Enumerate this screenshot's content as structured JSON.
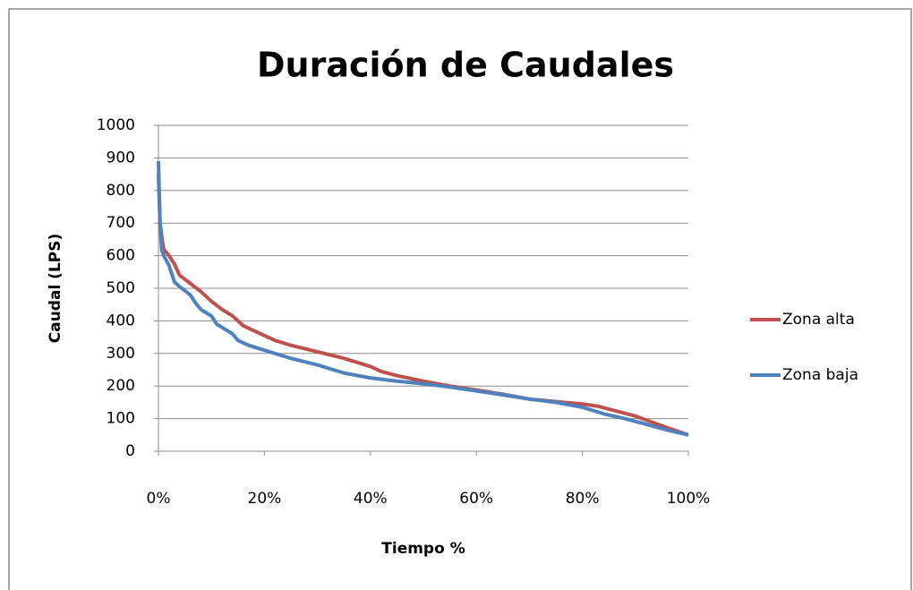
{
  "chart_data": {
    "type": "line",
    "title": "Duración de Caudales",
    "xlabel": "Tiempo %",
    "ylabel": "Caudal (LPS)",
    "xlim": [
      0,
      100
    ],
    "ylim": [
      0,
      1000
    ],
    "xticks": [
      {
        "value": 0,
        "label": "0%"
      },
      {
        "value": 20,
        "label": "20%"
      },
      {
        "value": 40,
        "label": "40%"
      },
      {
        "value": 60,
        "label": "60%"
      },
      {
        "value": 80,
        "label": "80%"
      },
      {
        "value": 100,
        "label": "100%"
      }
    ],
    "yticks": [
      0,
      100,
      200,
      300,
      400,
      500,
      600,
      700,
      800,
      900,
      1000
    ],
    "grid": true,
    "legend": "right",
    "series": [
      {
        "name": "Zona alta",
        "color": "#c0504d",
        "x": [
          0,
          0.3,
          0.7,
          1,
          2,
          3,
          4,
          6,
          8,
          10,
          12,
          14,
          16,
          18,
          20,
          22,
          25,
          30,
          35,
          38,
          40,
          42,
          45,
          50,
          55,
          60,
          65,
          70,
          75,
          80,
          83,
          86,
          90,
          93,
          96,
          100
        ],
        "values": [
          850,
          700,
          650,
          620,
          600,
          575,
          540,
          515,
          490,
          460,
          435,
          415,
          385,
          370,
          355,
          340,
          325,
          305,
          285,
          270,
          260,
          245,
          232,
          215,
          200,
          188,
          175,
          160,
          152,
          145,
          138,
          125,
          108,
          90,
          72,
          50
        ]
      },
      {
        "name": "Zona baja",
        "color": "#4f81bd",
        "x": [
          0,
          0.3,
          0.6,
          1,
          2,
          3,
          4,
          6,
          7,
          8,
          10,
          11,
          13,
          14,
          15,
          17,
          20,
          23,
          25,
          30,
          33,
          35,
          40,
          45,
          50,
          55,
          60,
          65,
          70,
          75,
          80,
          84,
          88,
          92,
          96,
          100
        ],
        "values": [
          890,
          700,
          620,
          600,
          570,
          520,
          505,
          480,
          455,
          435,
          415,
          390,
          370,
          360,
          340,
          325,
          310,
          295,
          285,
          265,
          250,
          240,
          225,
          215,
          207,
          197,
          185,
          173,
          160,
          150,
          135,
          115,
          100,
          83,
          65,
          50
        ]
      }
    ]
  }
}
